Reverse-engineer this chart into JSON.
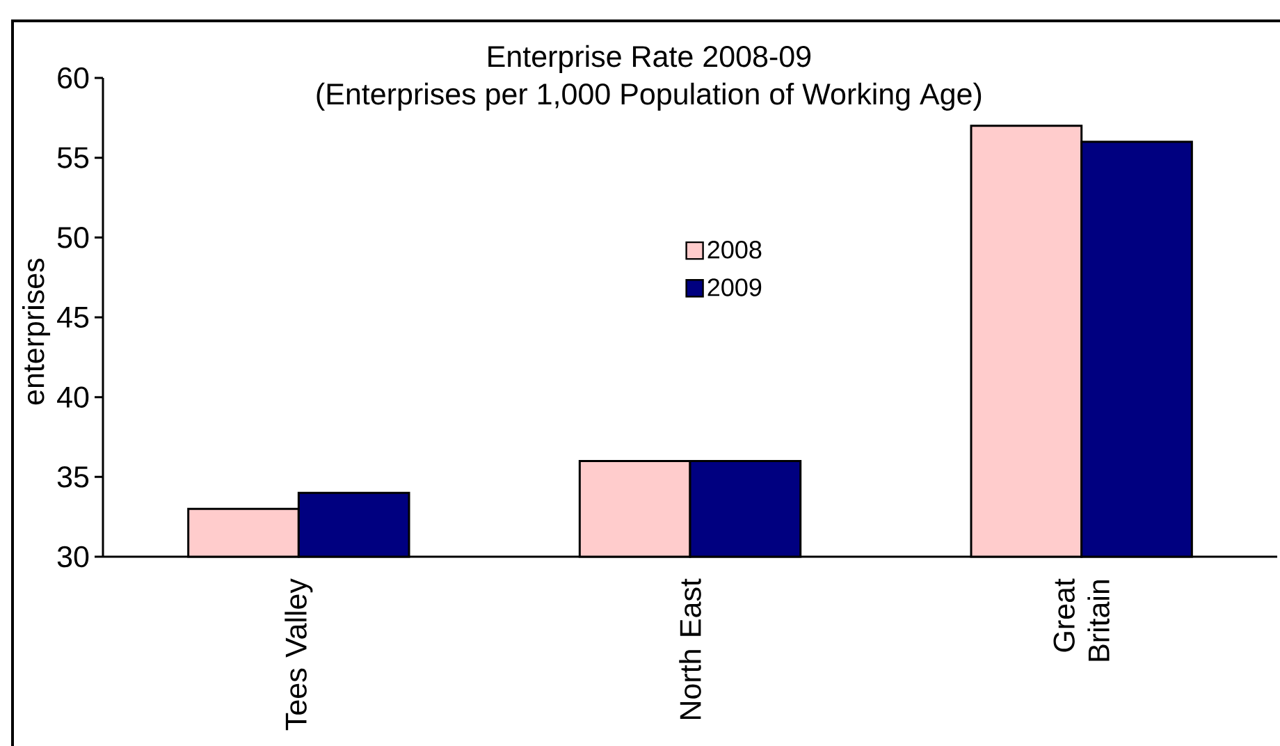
{
  "chart_data": {
    "type": "bar",
    "title": "Enterprise Rate 2008-09",
    "subtitle": "(Enterprises per 1,000 Population of Working Age)",
    "ylabel": "enterprises",
    "categories": [
      "Tees Valley",
      "North East",
      "Great Britain"
    ],
    "series": [
      {
        "name": "2008",
        "color": "#ffcccc",
        "values": [
          33,
          36,
          57
        ]
      },
      {
        "name": "2009",
        "color": "#000080",
        "values": [
          34,
          36,
          56
        ]
      }
    ],
    "ylim": [
      30,
      60
    ],
    "yticks": [
      30,
      35,
      40,
      45,
      50,
      55,
      60
    ],
    "legend": "center"
  }
}
